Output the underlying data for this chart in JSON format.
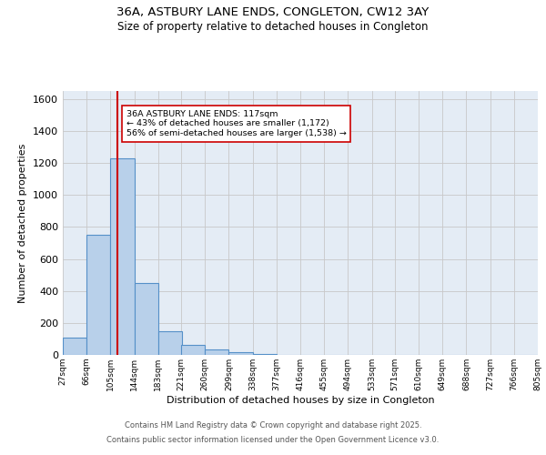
{
  "title_line1": "36A, ASTBURY LANE ENDS, CONGLETON, CW12 3AY",
  "title_line2": "Size of property relative to detached houses in Congleton",
  "xlabel": "Distribution of detached houses by size in Congleton",
  "ylabel": "Number of detached properties",
  "bin_labels": [
    "27sqm",
    "66sqm",
    "105sqm",
    "144sqm",
    "183sqm",
    "221sqm",
    "260sqm",
    "299sqm",
    "338sqm",
    "377sqm",
    "416sqm",
    "455sqm",
    "494sqm",
    "533sqm",
    "571sqm",
    "610sqm",
    "649sqm",
    "688sqm",
    "727sqm",
    "766sqm",
    "805sqm"
  ],
  "bin_edges": [
    27,
    66,
    105,
    144,
    183,
    221,
    260,
    299,
    338,
    377,
    416,
    455,
    494,
    533,
    571,
    610,
    649,
    688,
    727,
    766,
    805
  ],
  "bar_heights": [
    110,
    750,
    1230,
    450,
    150,
    60,
    35,
    15,
    5,
    0,
    0,
    0,
    0,
    0,
    0,
    0,
    0,
    0,
    0,
    0
  ],
  "bar_color": "#b8d0ea",
  "bar_edgecolor": "#5590c8",
  "bar_linewidth": 0.8,
  "grid_color": "#c8c8c8",
  "background_color": "#e4ecf5",
  "red_line_x": 117,
  "red_line_color": "#cc0000",
  "annotation_text": "36A ASTBURY LANE ENDS: 117sqm\n← 43% of detached houses are smaller (1,172)\n56% of semi-detached houses are larger (1,538) →",
  "annotation_box_facecolor": "#ffffff",
  "annotation_box_edgecolor": "#cc0000",
  "ylim": [
    0,
    1650
  ],
  "yticks": [
    0,
    200,
    400,
    600,
    800,
    1000,
    1200,
    1400,
    1600
  ],
  "footer_line1": "Contains HM Land Registry data © Crown copyright and database right 2025.",
  "footer_line2": "Contains public sector information licensed under the Open Government Licence v3.0."
}
